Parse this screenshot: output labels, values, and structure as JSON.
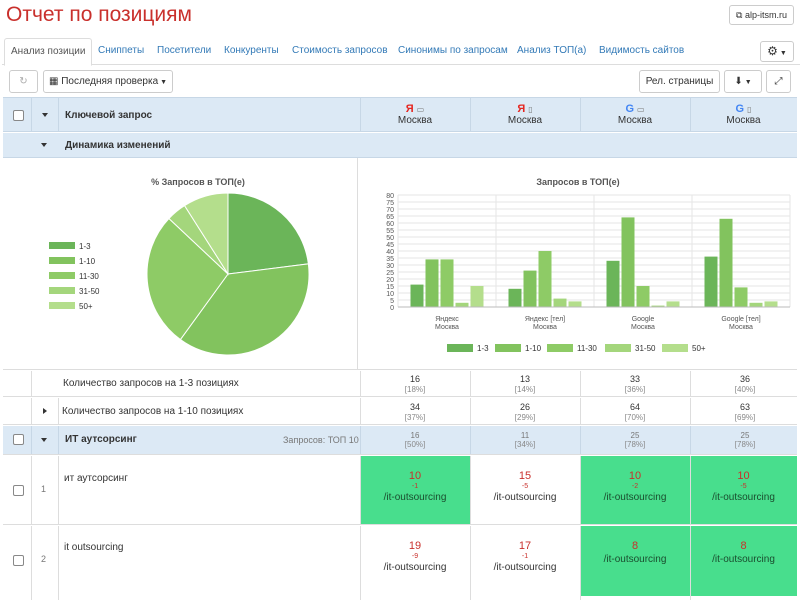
{
  "page": {
    "title": "Отчет по позициям",
    "site": "alp-itsm.ru"
  },
  "tabs": [
    "Анализ позиции",
    "Сниппеты",
    "Посетители",
    "Конкуренты",
    "Стоимость запросов",
    "Синонимы по запросам",
    "Анализ ТОП(а)",
    "Видимость сайтов"
  ],
  "toolbar": {
    "last_check": "Последняя проверка",
    "rel_pages": "Рел. страницы"
  },
  "header": {
    "keyword_col": "Ключевой запрос",
    "columns": [
      {
        "engine": "Я",
        "device": "desktop",
        "region": "Москва"
      },
      {
        "engine": "Я",
        "device": "mobile",
        "region": "Москва"
      },
      {
        "engine": "G",
        "device": "desktop",
        "region": "Москва"
      },
      {
        "engine": "G",
        "device": "mobile",
        "region": "Москва"
      }
    ]
  },
  "dynamics": {
    "label": "Динамика изменений"
  },
  "chart_data": [
    {
      "type": "pie",
      "title": "% Запросов в ТОП(е)",
      "legend_position": "left",
      "labels": [
        "1-3",
        "1-10",
        "11-30",
        "31-50",
        "50+"
      ],
      "values": [
        23,
        37,
        27,
        4,
        9
      ],
      "colors": [
        "#6bb559",
        "#82c35e",
        "#8ecb66",
        "#a4d67c",
        "#b4de8c"
      ]
    },
    {
      "type": "bar",
      "title": "Запросов в ТОП(е)",
      "legend_position": "bottom",
      "categories": [
        "Яндекс Москва",
        "Яндекс [тел] Москва",
        "Google Москва",
        "Google [тел] Москва"
      ],
      "ylim": [
        0,
        80
      ],
      "yticks": [
        0,
        5,
        10,
        15,
        20,
        25,
        30,
        35,
        40,
        45,
        50,
        55,
        60,
        65,
        70,
        75,
        80
      ],
      "series": [
        {
          "name": "1-3",
          "values": [
            16,
            13,
            33,
            36
          ],
          "color": "#6bb559"
        },
        {
          "name": "1-10",
          "values": [
            34,
            26,
            64,
            63
          ],
          "color": "#82c35e"
        },
        {
          "name": "11-30",
          "values": [
            34,
            40,
            15,
            14
          ],
          "color": "#8ecb66"
        },
        {
          "name": "31-50",
          "values": [
            3,
            6,
            1,
            3
          ],
          "color": "#a4d67c"
        },
        {
          "name": "50+",
          "values": [
            15,
            4,
            4,
            4
          ],
          "color": "#b4de8c"
        }
      ]
    }
  ],
  "stats": [
    {
      "label": "Количество запросов на 1-3 позициях",
      "values": [
        [
          "16",
          "[18%]"
        ],
        [
          "13",
          "[14%]"
        ],
        [
          "33",
          "[36%]"
        ],
        [
          "36",
          "[40%]"
        ]
      ]
    },
    {
      "label": "Количество запросов на 1-10 позициях",
      "values": [
        [
          "34",
          "[37%]"
        ],
        [
          "26",
          "[29%]"
        ],
        [
          "64",
          "[70%]"
        ],
        [
          "63",
          "[69%]"
        ]
      ]
    }
  ],
  "group": {
    "name": "ИТ аутсорсинг",
    "info": "Запросов: ТОП 10",
    "values": [
      [
        "16",
        "[50%]"
      ],
      [
        "11",
        "[34%]"
      ],
      [
        "25",
        "[78%]"
      ],
      [
        "25",
        "[78%]"
      ]
    ]
  },
  "keywords": [
    {
      "num": "1",
      "text": "ит аутсорсинг",
      "cells": [
        {
          "pos": "10",
          "delta": "-1",
          "url": "/it-outsourcing",
          "green": true
        },
        {
          "pos": "15",
          "delta": "-5",
          "url": "/it-outsourcing",
          "green": false
        },
        {
          "pos": "10",
          "delta": "-2",
          "url": "/it-outsourcing",
          "green": true
        },
        {
          "pos": "10",
          "delta": "-5",
          "url": "/it-outsourcing",
          "green": true
        }
      ]
    },
    {
      "num": "2",
      "text": "it outsourcing",
      "cells": [
        {
          "pos": "19",
          "delta": "-9",
          "url": "/it-outsourcing",
          "green": false
        },
        {
          "pos": "17",
          "delta": "-1",
          "url": "/it-outsourcing",
          "green": false
        },
        {
          "pos": "8",
          "delta": "",
          "url": "/it-outsourcing",
          "green": true
        },
        {
          "pos": "8",
          "delta": "",
          "url": "/it-outsourcing",
          "green": true
        }
      ]
    }
  ]
}
